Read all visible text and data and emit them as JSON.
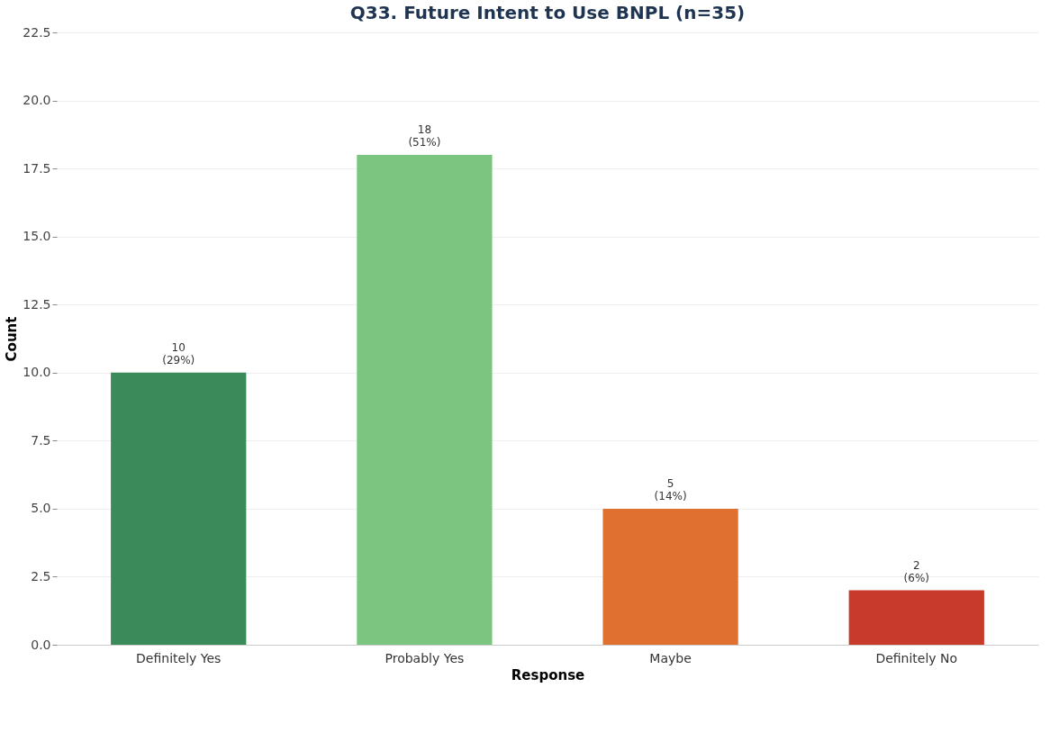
{
  "chart_data": {
    "type": "bar",
    "title": "Q33. Future Intent to Use BNPL (n=35)",
    "xlabel": "Response",
    "ylabel": "Count",
    "categories": [
      "Definitely Yes",
      "Probably Yes",
      "Maybe",
      "Definitely No"
    ],
    "values": [
      10,
      18,
      5,
      2
    ],
    "colors": [
      "#3a8a5a",
      "#7bc67e",
      "#e07030",
      "#c83a2a"
    ],
    "value_labels": [
      "10\n(29%)",
      "18\n(51%)",
      "5\n(14%)",
      "2\n(6%)"
    ],
    "ylim": [
      0,
      22.5
    ],
    "yticks": [
      {
        "value": 0,
        "label": "0.0"
      },
      2.5,
      {
        "value": 5,
        "label": "5.0"
      },
      7.5,
      {
        "value": 10,
        "label": "10.0"
      },
      12.5,
      {
        "value": 15,
        "label": "15.0"
      },
      17.5,
      {
        "value": 20,
        "label": "20.0"
      },
      22.5
    ],
    "grid": "y"
  }
}
